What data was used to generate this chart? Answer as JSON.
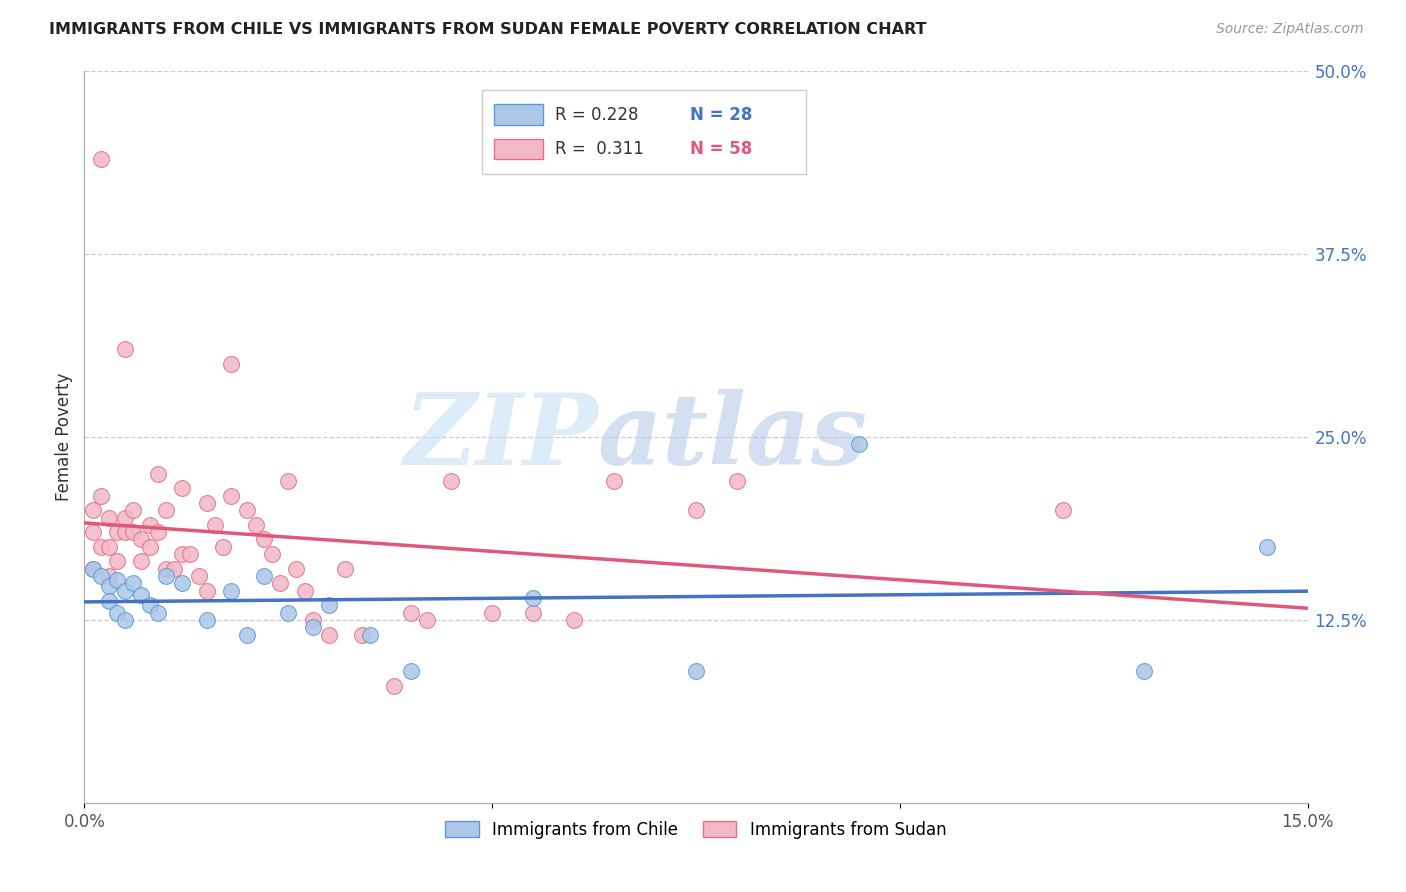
{
  "title": "IMMIGRANTS FROM CHILE VS IMMIGRANTS FROM SUDAN FEMALE POVERTY CORRELATION CHART",
  "source": "Source: ZipAtlas.com",
  "ylabel": "Female Poverty",
  "xlim": [
    0.0,
    0.15
  ],
  "ylim": [
    0.0,
    0.5
  ],
  "xticks": [
    0.0,
    0.05,
    0.1,
    0.15
  ],
  "xtick_labels": [
    "0.0%",
    "",
    "",
    "15.0%"
  ],
  "ytick_right": [
    0.125,
    0.25,
    0.375,
    0.5
  ],
  "ytick_right_labels": [
    "12.5%",
    "25.0%",
    "37.5%",
    "50.0%"
  ],
  "grid_color": "#cccccc",
  "background_color": "#ffffff",
  "watermark_zip": "ZIP",
  "watermark_atlas": "atlas",
  "chile_color": "#adc6e8",
  "chile_edge_color": "#5b9bd5",
  "chile_line_color": "#4472c4",
  "sudan_color": "#f2b8c6",
  "sudan_edge_color": "#e07090",
  "sudan_line_color": "#e05878",
  "legend_R_chile": "0.228",
  "legend_N_chile": "28",
  "legend_R_sudan": "0.311",
  "legend_N_sudan": "58",
  "legend_label_chile": "Immigrants from Chile",
  "legend_label_sudan": "Immigrants from Sudan",
  "chile_x": [
    0.001,
    0.002,
    0.003,
    0.003,
    0.004,
    0.004,
    0.005,
    0.005,
    0.006,
    0.007,
    0.008,
    0.009,
    0.01,
    0.012,
    0.015,
    0.018,
    0.02,
    0.022,
    0.025,
    0.028,
    0.03,
    0.035,
    0.04,
    0.055,
    0.075,
    0.095,
    0.13,
    0.145
  ],
  "chile_y": [
    0.16,
    0.155,
    0.148,
    0.138,
    0.152,
    0.13,
    0.145,
    0.125,
    0.15,
    0.142,
    0.135,
    0.13,
    0.155,
    0.15,
    0.125,
    0.145,
    0.115,
    0.155,
    0.13,
    0.12,
    0.135,
    0.115,
    0.09,
    0.14,
    0.09,
    0.245,
    0.09,
    0.175
  ],
  "sudan_x": [
    0.001,
    0.001,
    0.001,
    0.002,
    0.002,
    0.003,
    0.003,
    0.003,
    0.004,
    0.004,
    0.005,
    0.005,
    0.005,
    0.006,
    0.006,
    0.007,
    0.007,
    0.008,
    0.008,
    0.009,
    0.009,
    0.01,
    0.01,
    0.011,
    0.012,
    0.012,
    0.013,
    0.014,
    0.015,
    0.015,
    0.016,
    0.017,
    0.018,
    0.018,
    0.02,
    0.021,
    0.022,
    0.023,
    0.024,
    0.025,
    0.026,
    0.027,
    0.028,
    0.03,
    0.032,
    0.034,
    0.038,
    0.04,
    0.042,
    0.045,
    0.05,
    0.055,
    0.06,
    0.065,
    0.075,
    0.08,
    0.002,
    0.12
  ],
  "sudan_y": [
    0.16,
    0.185,
    0.2,
    0.175,
    0.21,
    0.195,
    0.175,
    0.155,
    0.185,
    0.165,
    0.195,
    0.185,
    0.31,
    0.2,
    0.185,
    0.18,
    0.165,
    0.19,
    0.175,
    0.225,
    0.185,
    0.2,
    0.16,
    0.16,
    0.17,
    0.215,
    0.17,
    0.155,
    0.145,
    0.205,
    0.19,
    0.175,
    0.3,
    0.21,
    0.2,
    0.19,
    0.18,
    0.17,
    0.15,
    0.22,
    0.16,
    0.145,
    0.125,
    0.115,
    0.16,
    0.115,
    0.08,
    0.13,
    0.125,
    0.22,
    0.13,
    0.13,
    0.125,
    0.22,
    0.2,
    0.22,
    0.44,
    0.2
  ]
}
